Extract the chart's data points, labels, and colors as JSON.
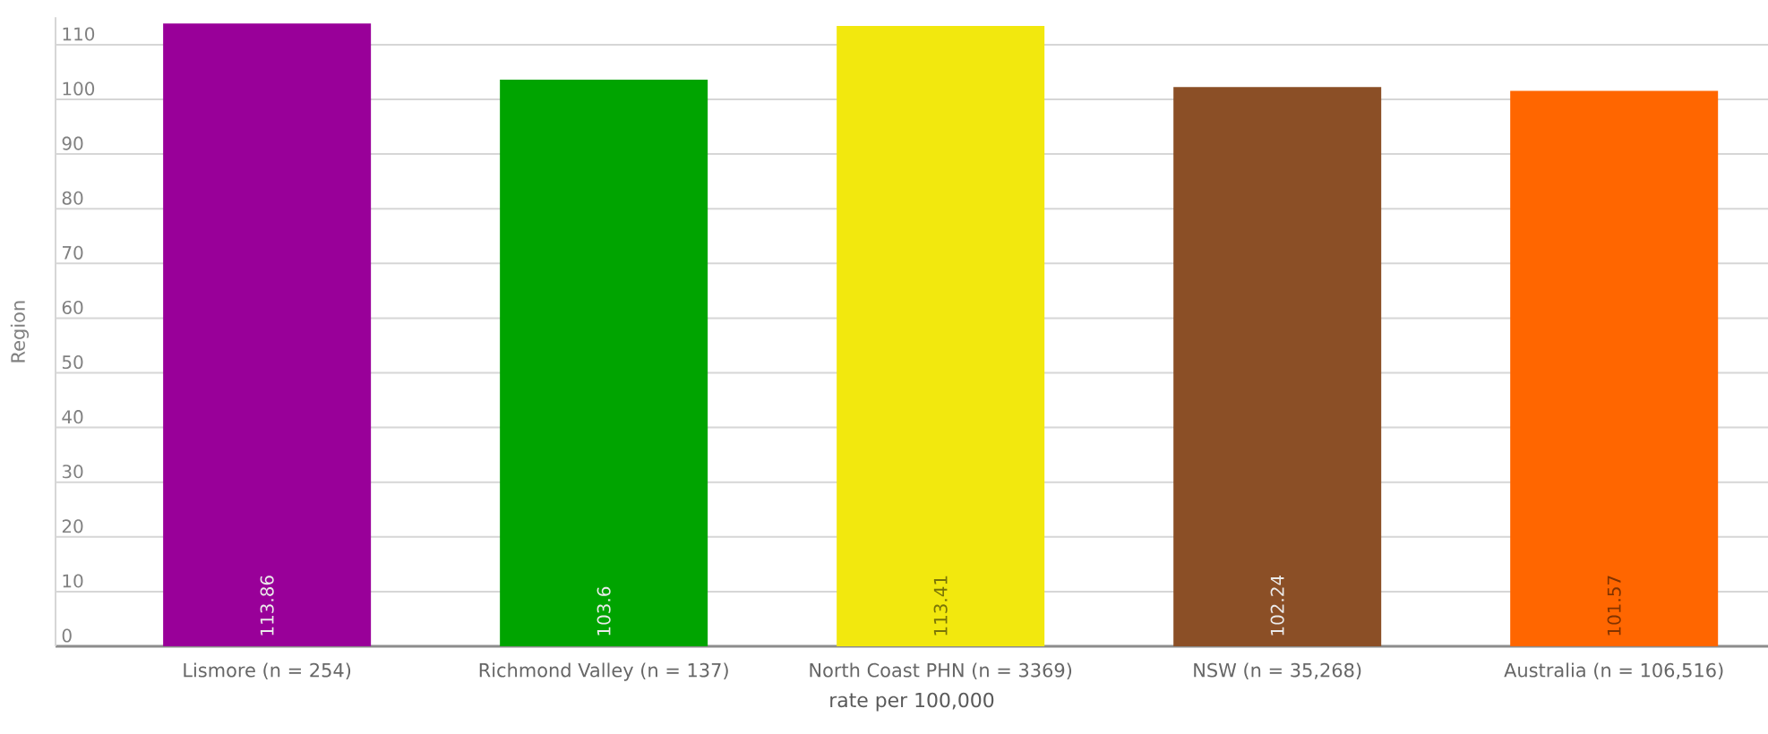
{
  "chart_data": {
    "type": "bar",
    "categories": [
      "Lismore (n = 254)",
      "Richmond Valley (n = 137)",
      "North Coast PHN (n = 3369)",
      "NSW (n = 35,268)",
      "Australia (n = 106,516)"
    ],
    "values": [
      113.86,
      103.6,
      113.41,
      102.24,
      101.57
    ],
    "colors": [
      "#990099",
      "#00a400",
      "#f2e80e",
      "#8b4f26",
      "#ff6600"
    ],
    "xlabel": "rate per 100,000",
    "ylabel": "Region",
    "ylim": [
      0,
      115
    ],
    "yticks": [
      0,
      10,
      20,
      30,
      40,
      50,
      60,
      70,
      80,
      90,
      100,
      110
    ],
    "grid": "y",
    "data_labels": true
  }
}
